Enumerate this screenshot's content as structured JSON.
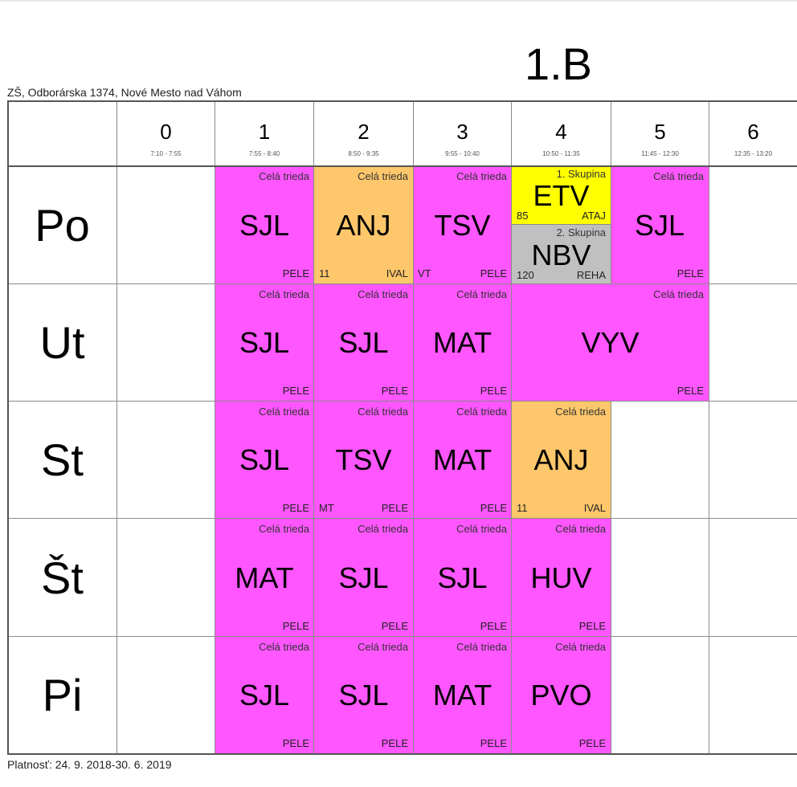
{
  "header": {
    "class_name": "1.B",
    "school": "ZŠ, Odborárska 1374, Nové Mesto nad Váhom",
    "validity": "Platnosť: 24. 9. 2018-30. 6. 2019"
  },
  "periods": [
    {
      "num": "0",
      "time": "7:10 - 7:55"
    },
    {
      "num": "1",
      "time": "7:55 - 8:40"
    },
    {
      "num": "2",
      "time": "8:50 - 9:35"
    },
    {
      "num": "3",
      "time": "9:55 - 10:40"
    },
    {
      "num": "4",
      "time": "10:50 - 11:35"
    },
    {
      "num": "5",
      "time": "11:45 - 12:30"
    },
    {
      "num": "6",
      "time": "12:35 - 13:20"
    }
  ],
  "days": [
    "Po",
    "Ut",
    "St",
    "Št",
    "Pi"
  ],
  "colors": {
    "magenta": "#ff56ff",
    "orange": "#ffc76b",
    "yellow": "#ffff00",
    "gray": "#c0c0c0"
  },
  "lessons": {
    "po": {
      "p1": {
        "group": "Celá trieda",
        "subject": "SJL",
        "teacher": "PELE"
      },
      "p2": {
        "group": "Celá trieda",
        "subject": "ANJ",
        "room": "11",
        "teacher": "IVAL"
      },
      "p3": {
        "group": "Celá trieda",
        "subject": "TSV",
        "room": "VT",
        "teacher": "PELE"
      },
      "p4a": {
        "group": "1. Skupina",
        "subject": "ETV",
        "room": "85",
        "teacher": "ATAJ"
      },
      "p4b": {
        "group": "2. Skupina",
        "subject": "NBV",
        "room": "120",
        "teacher": "REHA"
      },
      "p5": {
        "group": "Celá trieda",
        "subject": "SJL",
        "teacher": "PELE"
      }
    },
    "ut": {
      "p1": {
        "group": "Celá trieda",
        "subject": "SJL",
        "teacher": "PELE"
      },
      "p2": {
        "group": "Celá trieda",
        "subject": "SJL",
        "teacher": "PELE"
      },
      "p3": {
        "group": "Celá trieda",
        "subject": "MAT",
        "teacher": "PELE"
      },
      "p45": {
        "group": "Celá trieda",
        "subject": "VYV",
        "teacher": "PELE"
      }
    },
    "st": {
      "p1": {
        "group": "Celá trieda",
        "subject": "SJL",
        "teacher": "PELE"
      },
      "p2": {
        "group": "Celá trieda",
        "subject": "TSV",
        "room": "MT",
        "teacher": "PELE"
      },
      "p3": {
        "group": "Celá trieda",
        "subject": "MAT",
        "teacher": "PELE"
      },
      "p4": {
        "group": "Celá trieda",
        "subject": "ANJ",
        "room": "11",
        "teacher": "IVAL"
      }
    },
    "stv": {
      "p1": {
        "group": "Celá trieda",
        "subject": "MAT",
        "teacher": "PELE"
      },
      "p2": {
        "group": "Celá trieda",
        "subject": "SJL",
        "teacher": "PELE"
      },
      "p3": {
        "group": "Celá trieda",
        "subject": "SJL",
        "teacher": "PELE"
      },
      "p4": {
        "group": "Celá trieda",
        "subject": "HUV",
        "teacher": "PELE"
      }
    },
    "pi": {
      "p1": {
        "group": "Celá trieda",
        "subject": "SJL",
        "teacher": "PELE"
      },
      "p2": {
        "group": "Celá trieda",
        "subject": "SJL",
        "teacher": "PELE"
      },
      "p3": {
        "group": "Celá trieda",
        "subject": "MAT",
        "teacher": "PELE"
      },
      "p4": {
        "group": "Celá trieda",
        "subject": "PVO",
        "teacher": "PELE"
      }
    }
  }
}
